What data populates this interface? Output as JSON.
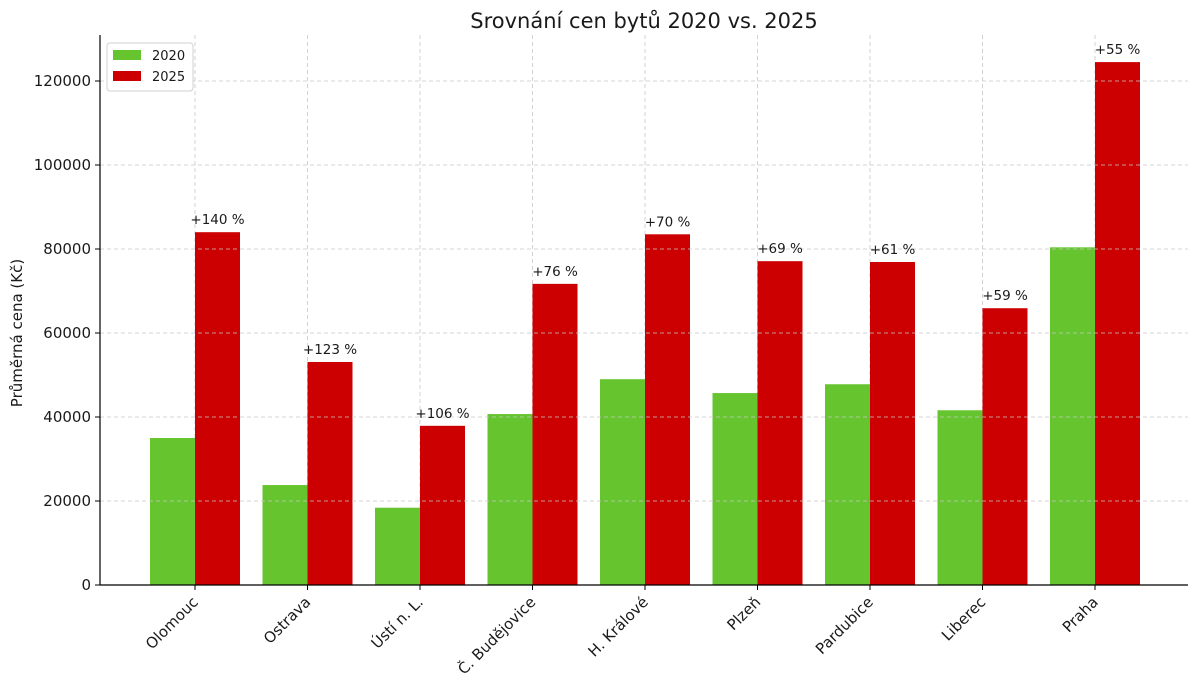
{
  "chart_data": {
    "type": "bar",
    "title": "Srovnání cen bytů 2020 vs. 2025",
    "xlabel": "",
    "ylabel": "Průměrná cena (Kč)",
    "ylim": [
      0,
      131000
    ],
    "yticks": [
      0,
      20000,
      40000,
      60000,
      80000,
      100000,
      120000
    ],
    "grid": true,
    "legend_position": "top-left",
    "categories": [
      "Olomouc",
      "Ostrava",
      "Ústí n. L.",
      "Č. Budějovice",
      "H. Králové",
      "Plzeň",
      "Pardubice",
      "Liberec",
      "Praha"
    ],
    "series": [
      {
        "name": "2020",
        "color": "#66c52f",
        "values": [
          35000,
          23800,
          18400,
          40700,
          49000,
          45700,
          47800,
          41600,
          80400
        ]
      },
      {
        "name": "2025",
        "color": "#cc0000",
        "values": [
          84000,
          53100,
          37900,
          71700,
          83500,
          77100,
          76900,
          65900,
          124500
        ]
      }
    ],
    "annotations": [
      "+140 %",
      "+123 %",
      "+106 %",
      "+76 %",
      "+70 %",
      "+69 %",
      "+61 %",
      "+59 %",
      "+55 %"
    ]
  }
}
